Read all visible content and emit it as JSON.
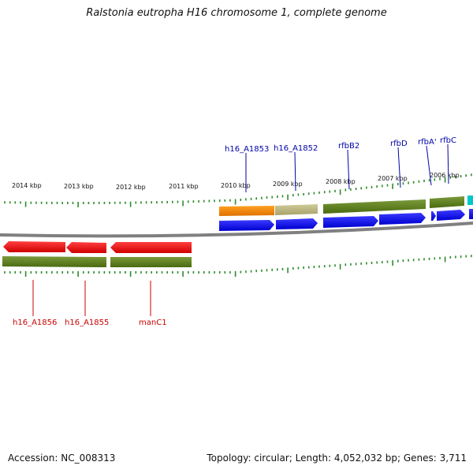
{
  "title": "Ralstonia eutropha H16 chromosome 1, complete genome",
  "footer": {
    "accession": "Accession: NC_008313",
    "summary": "Topology: circular; Length: 4,052,032 bp; Genes: 3,711"
  },
  "colors": {
    "backbone": "#808080",
    "tick": "#2e8b2e",
    "gene_red": "#ff0000",
    "gene_olive": "#5a7a1a",
    "gene_blue": "#0000ff",
    "gene_orange": "#ff8c00",
    "gene_khaki": "#b5b07a",
    "gene_cyan": "#00c8c8",
    "label_top": "#0000aa",
    "label_bottom": "#cc0000"
  },
  "scale_labels": [
    "2014 kbp",
    "2013 kbp",
    "2012 kbp",
    "2011 kbp",
    "2010 kbp",
    "2009 kbp",
    "2008 kbp",
    "2007 kbp",
    "2006 kbp"
  ],
  "top_gene_labels": [
    "h16_A1853",
    "h16_A1852",
    "rfbB2",
    "rfbD",
    "rfbA'",
    "rfbC"
  ],
  "bottom_gene_labels": [
    "h16_A1856",
    "h16_A1855",
    "manC1"
  ]
}
